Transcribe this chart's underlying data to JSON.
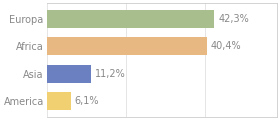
{
  "categories": [
    "Europa",
    "Africa",
    "Asia",
    "America"
  ],
  "values": [
    42.3,
    40.4,
    11.2,
    6.1
  ],
  "labels": [
    "42,3%",
    "40,4%",
    "11,2%",
    "6,1%"
  ],
  "bar_colors": [
    "#a8be8c",
    "#e8b882",
    "#6b80c0",
    "#f0d070"
  ],
  "background_color": "#ffffff",
  "xlim": [
    0,
    58
  ],
  "bar_height": 0.65,
  "label_fontsize": 7.0,
  "category_fontsize": 7.0,
  "text_color": "#888888",
  "grid_color": "#e0e0e0",
  "spine_color": "#cccccc"
}
